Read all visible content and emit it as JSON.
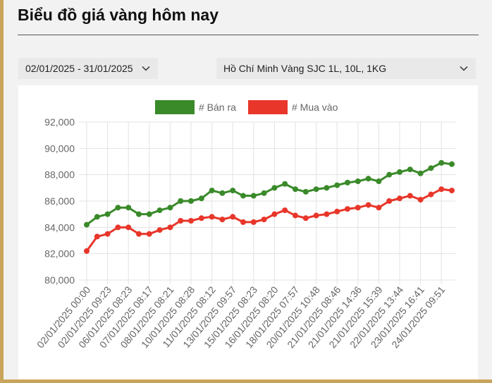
{
  "page": {
    "title": "Biểu đồ giá vàng hôm nay",
    "date_range": "02/01/2025 - 31/01/2025",
    "location": "Hồ Chí Minh Vàng SJC 1L, 10L, 1KG",
    "icons": {
      "dropdown": "chevron-down-icon"
    }
  },
  "chart_data": {
    "type": "line",
    "title": "",
    "xlabel": "",
    "ylabel": "",
    "ylim": [
      80000,
      92000
    ],
    "yticks": [
      "80,000",
      "82,000",
      "84,000",
      "86,000",
      "88,000",
      "90,000",
      "92,000"
    ],
    "x_tick_labels": [
      "02/01/2025 00:00",
      "02/01/2025 09:23",
      "06/01/2025 08:23",
      "07/01/2025 08:17",
      "08/01/2025 08:21",
      "10/01/2025 08:28",
      "11/01/2025 08:12",
      "13/01/2025 09:57",
      "15/01/2025 08:23",
      "16/01/2025 08:20",
      "18/01/2025 07:57",
      "20/01/2025 10:48",
      "21/01/2025 08:46",
      "21/01/2025 14:36",
      "21/01/2025 15:39",
      "22/01/2025 13:44",
      "23/01/2025 16:41",
      "24/01/2025 09:51"
    ],
    "grid": true,
    "legend_position": "top-center",
    "series": [
      {
        "name": "# Bán ra",
        "color": "#3a8a2a",
        "values": [
          84200,
          84800,
          85000,
          85500,
          85500,
          85000,
          85000,
          85300,
          85500,
          86000,
          86000,
          86200,
          86800,
          86600,
          86800,
          86400,
          86400,
          86600,
          87000,
          87300,
          86900,
          86700,
          86900,
          87000,
          87200,
          87400,
          87500,
          87700,
          87500,
          88000,
          88200,
          88400,
          88100,
          88500,
          88900,
          88800
        ]
      },
      {
        "name": "# Mua vào",
        "color": "#e8362a",
        "values": [
          82200,
          83300,
          83500,
          84000,
          84000,
          83500,
          83500,
          83800,
          84000,
          84500,
          84500,
          84700,
          84800,
          84600,
          84800,
          84400,
          84400,
          84600,
          85000,
          85300,
          84900,
          84700,
          84900,
          85000,
          85200,
          85400,
          85500,
          85700,
          85500,
          86000,
          86200,
          86400,
          86100,
          86500,
          86900,
          86800
        ]
      }
    ]
  }
}
